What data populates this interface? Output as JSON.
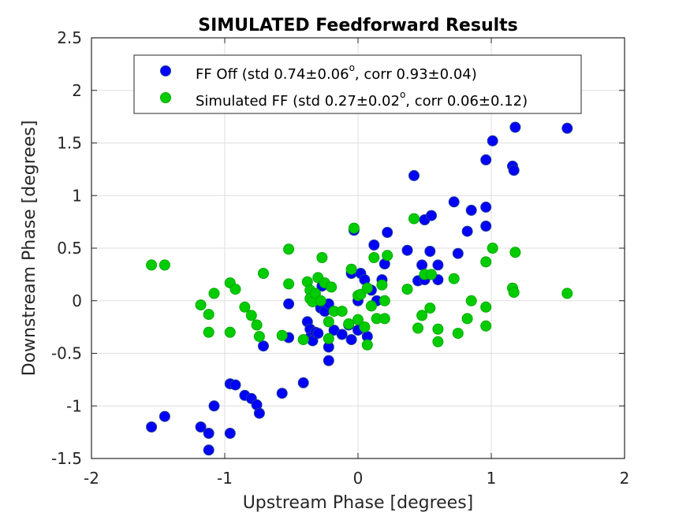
{
  "chart_data": {
    "type": "scatter",
    "title": "SIMULATED Feedforward Results",
    "xlabel": "Upstream Phase [degrees]",
    "ylabel": "Downstream Phase [degrees]",
    "xlim": [
      -2,
      2
    ],
    "ylim": [
      -1.5,
      2.5
    ],
    "xticks": [
      -2,
      -1,
      0,
      1,
      2
    ],
    "xtick_labels": [
      "-2",
      "-1",
      "0",
      "1",
      "2"
    ],
    "yticks": [
      -1.5,
      -1,
      -0.5,
      0,
      0.5,
      1,
      1.5,
      2,
      2.5
    ],
    "ytick_labels": [
      "-1.5",
      "-1",
      "-0.5",
      "0",
      "0.5",
      "1",
      "1.5",
      "2",
      "2.5"
    ],
    "grid": true,
    "legend_position": "top",
    "series": [
      {
        "name": "FF Off",
        "legend_label": "FF Off (std 0.74±0.06",
        "legend_label_sup": "o",
        "legend_label_tail": ", corr 0.93±0.04)",
        "color": "#0000ff",
        "edge_color": "#1f3f8f",
        "points": [
          [
            -1.55,
            -1.2
          ],
          [
            -1.45,
            -1.1
          ],
          [
            -1.18,
            -1.2
          ],
          [
            -1.12,
            -1.26
          ],
          [
            -1.12,
            -1.42
          ],
          [
            -1.08,
            -1.0
          ],
          [
            -0.96,
            -1.26
          ],
          [
            -0.96,
            -0.79
          ],
          [
            -0.92,
            -0.8
          ],
          [
            -0.85,
            -0.9
          ],
          [
            -0.8,
            -0.93
          ],
          [
            -0.76,
            -0.99
          ],
          [
            -0.74,
            -1.07
          ],
          [
            -0.71,
            -0.43
          ],
          [
            -0.57,
            -0.88
          ],
          [
            -0.52,
            -0.35
          ],
          [
            -0.52,
            -0.03
          ],
          [
            -0.41,
            -0.78
          ],
          [
            -0.38,
            -0.2
          ],
          [
            -0.36,
            -0.27
          ],
          [
            -0.36,
            -0.35
          ],
          [
            -0.34,
            -0.38
          ],
          [
            -0.32,
            -0.3
          ],
          [
            -0.3,
            -0.31
          ],
          [
            -0.28,
            -0.07
          ],
          [
            -0.27,
            0.14
          ],
          [
            -0.25,
            -0.1
          ],
          [
            -0.22,
            -0.03
          ],
          [
            -0.22,
            -0.44
          ],
          [
            -0.22,
            -0.57
          ],
          [
            -0.18,
            -0.28
          ],
          [
            -0.12,
            -0.32
          ],
          [
            -0.07,
            -0.23
          ],
          [
            -0.05,
            0.26
          ],
          [
            -0.05,
            -0.37
          ],
          [
            -0.03,
            0.67
          ],
          [
            0.0,
            -0.28
          ],
          [
            0.0,
            0.0
          ],
          [
            0.02,
            0.26
          ],
          [
            0.05,
            0.2
          ],
          [
            0.07,
            -0.34
          ],
          [
            0.1,
            0.1
          ],
          [
            0.12,
            0.53
          ],
          [
            0.14,
            0.0
          ],
          [
            0.18,
            0.2
          ],
          [
            0.2,
            0.35
          ],
          [
            0.22,
            0.65
          ],
          [
            0.37,
            0.48
          ],
          [
            0.42,
            1.19
          ],
          [
            0.45,
            0.19
          ],
          [
            0.48,
            0.34
          ],
          [
            0.5,
            0.2
          ],
          [
            0.5,
            0.77
          ],
          [
            0.54,
            0.47
          ],
          [
            0.55,
            0.81
          ],
          [
            0.6,
            0.34
          ],
          [
            0.6,
            0.2
          ],
          [
            0.72,
            0.94
          ],
          [
            0.75,
            0.45
          ],
          [
            0.82,
            0.66
          ],
          [
            0.85,
            0.86
          ],
          [
            0.96,
            1.34
          ],
          [
            0.96,
            0.89
          ],
          [
            0.96,
            0.71
          ],
          [
            1.01,
            1.52
          ],
          [
            1.16,
            1.28
          ],
          [
            1.17,
            1.24
          ],
          [
            1.18,
            1.65
          ],
          [
            1.57,
            1.64
          ]
        ]
      },
      {
        "name": "Simulated FF",
        "legend_label": "Simulated FF (std 0.27±0.02",
        "legend_label_sup": "o",
        "legend_label_tail": ", corr 0.06±0.12)",
        "color": "#00cc00",
        "edge_color": "#00aa00",
        "points": [
          [
            -1.55,
            0.34
          ],
          [
            -1.45,
            0.34
          ],
          [
            -1.18,
            -0.04
          ],
          [
            -1.12,
            -0.13
          ],
          [
            -1.12,
            -0.3
          ],
          [
            -1.08,
            0.07
          ],
          [
            -0.96,
            0.17
          ],
          [
            -0.96,
            -0.3
          ],
          [
            -0.92,
            0.11
          ],
          [
            -0.85,
            -0.06
          ],
          [
            -0.8,
            -0.14
          ],
          [
            -0.76,
            -0.23
          ],
          [
            -0.74,
            -0.34
          ],
          [
            -0.71,
            0.26
          ],
          [
            -0.57,
            -0.33
          ],
          [
            -0.52,
            0.49
          ],
          [
            -0.52,
            0.16
          ],
          [
            -0.41,
            -0.37
          ],
          [
            -0.38,
            0.18
          ],
          [
            -0.36,
            0.1
          ],
          [
            -0.36,
            0.02
          ],
          [
            -0.34,
            -0.01
          ],
          [
            -0.32,
            0.07
          ],
          [
            -0.3,
            0.22
          ],
          [
            -0.28,
            0.0
          ],
          [
            -0.27,
            0.41
          ],
          [
            -0.25,
            0.17
          ],
          [
            -0.22,
            -0.2
          ],
          [
            -0.22,
            -0.36
          ],
          [
            -0.2,
            0.13
          ],
          [
            -0.18,
            -0.1
          ],
          [
            -0.12,
            -0.1
          ],
          [
            -0.07,
            -0.22
          ],
          [
            -0.05,
            0.3
          ],
          [
            -0.03,
            0.69
          ],
          [
            0.0,
            -0.18
          ],
          [
            0.0,
            0.05
          ],
          [
            0.02,
            0.06
          ],
          [
            0.05,
            -0.25
          ],
          [
            0.07,
            -0.42
          ],
          [
            0.07,
            0.12
          ],
          [
            0.1,
            -0.05
          ],
          [
            0.12,
            0.41
          ],
          [
            0.14,
            -0.17
          ],
          [
            0.18,
            0.15
          ],
          [
            0.2,
            0.0
          ],
          [
            0.2,
            -0.17
          ],
          [
            0.22,
            0.43
          ],
          [
            0.37,
            0.11
          ],
          [
            0.42,
            0.78
          ],
          [
            0.45,
            -0.26
          ],
          [
            0.48,
            -0.14
          ],
          [
            0.5,
            0.25
          ],
          [
            0.54,
            -0.07
          ],
          [
            0.55,
            0.25
          ],
          [
            0.6,
            -0.27
          ],
          [
            0.6,
            -0.39
          ],
          [
            0.72,
            0.21
          ],
          [
            0.75,
            -0.31
          ],
          [
            0.82,
            -0.17
          ],
          [
            0.85,
            0.0
          ],
          [
            0.96,
            0.37
          ],
          [
            0.96,
            -0.06
          ],
          [
            0.96,
            -0.24
          ],
          [
            1.01,
            0.5
          ],
          [
            1.16,
            0.12
          ],
          [
            1.17,
            0.08
          ],
          [
            1.18,
            0.46
          ],
          [
            1.57,
            0.07
          ]
        ]
      }
    ]
  }
}
